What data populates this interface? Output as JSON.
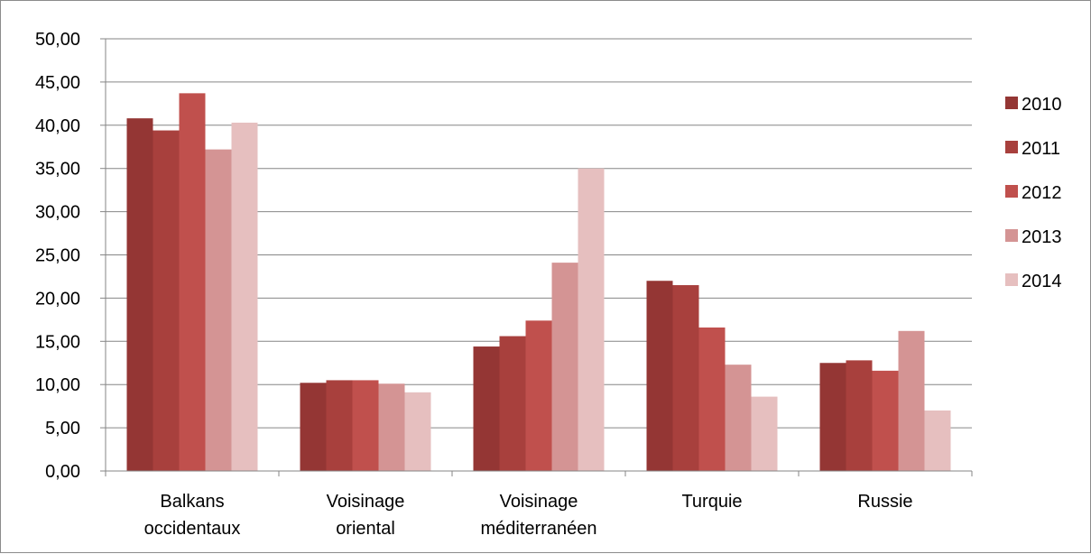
{
  "chart_data": {
    "type": "bar",
    "title": "",
    "xlabel": "",
    "ylabel": "",
    "ylim": [
      0,
      50
    ],
    "y_ticks": [
      "0,00",
      "5,00",
      "10,00",
      "15,00",
      "20,00",
      "25,00",
      "30,00",
      "35,00",
      "40,00",
      "45,00",
      "50,00"
    ],
    "categories": [
      [
        "Balkans",
        "occidentaux"
      ],
      [
        "Voisinage",
        "oriental"
      ],
      [
        "Voisinage",
        "méditerranéen"
      ],
      [
        "Turquie"
      ],
      [
        "Russie"
      ]
    ],
    "series": [
      {
        "name": "2010",
        "color": "#943634",
        "values": [
          40.8,
          10.2,
          14.4,
          22.0,
          12.5
        ]
      },
      {
        "name": "2011",
        "color": "#a8403d",
        "values": [
          39.4,
          10.5,
          15.6,
          21.5,
          12.8
        ]
      },
      {
        "name": "2012",
        "color": "#c0504d",
        "values": [
          43.7,
          10.5,
          17.4,
          16.6,
          11.6
        ]
      },
      {
        "name": "2013",
        "color": "#d49494",
        "values": [
          37.2,
          10.1,
          24.1,
          12.3,
          16.2
        ]
      },
      {
        "name": "2014",
        "color": "#e6bfbf",
        "values": [
          40.3,
          9.1,
          35.0,
          8.6,
          7.0
        ]
      }
    ],
    "grid": true,
    "legend_position": "right"
  }
}
